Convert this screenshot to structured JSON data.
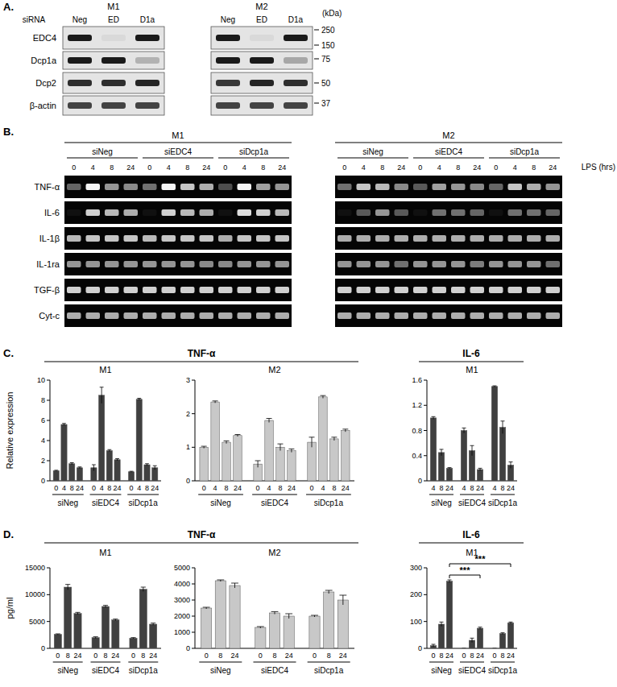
{
  "figure_a": {
    "label": "A.",
    "row_header": "siRNA",
    "unit": "(kDa)",
    "lanes": [
      "Neg",
      "ED",
      "D1a"
    ],
    "proteins": [
      "EDC4",
      "Dcp1a",
      "Dcp2",
      "β-actin"
    ],
    "markers": [
      250,
      150,
      75,
      50,
      37
    ],
    "groups": [
      {
        "name": "M1",
        "bands": [
          [
            1,
            0.05,
            1
          ],
          [
            1,
            1,
            0.25
          ],
          [
            0.9,
            0.9,
            0.95
          ],
          [
            0.8,
            0.8,
            0.8
          ]
        ]
      },
      {
        "name": "M2",
        "bands": [
          [
            1,
            0.05,
            1
          ],
          [
            1,
            1,
            0.3
          ],
          [
            0.85,
            0.95,
            0.9
          ],
          [
            0.8,
            0.8,
            0.8
          ]
        ]
      }
    ]
  },
  "figure_b": {
    "label": "B.",
    "x_label": "LPS (hrs)",
    "genes": [
      "TNF-α",
      "IL-6",
      "IL-1β",
      "IL-1ra",
      "TGF-β",
      "Cyt-c"
    ],
    "groups": [
      "siNeg",
      "siEDC4",
      "siDcp1a"
    ],
    "times": [
      "0",
      "4",
      "8",
      "24"
    ],
    "gels": [
      {
        "name": "M1",
        "bands": [
          [
            0.4,
            1,
            0.6,
            0.55,
            0.45,
            1,
            0.8,
            0.7,
            0.3,
            1,
            0.65,
            0.6
          ],
          [
            0.05,
            0.85,
            0.75,
            0.7,
            0.05,
            0.85,
            0.75,
            0.7,
            0.05,
            0.9,
            0.85,
            0.75
          ],
          [
            0.75,
            0.8,
            0.8,
            0.8,
            0.75,
            0.8,
            0.8,
            0.8,
            0.7,
            0.8,
            0.8,
            0.8
          ],
          [
            0.6,
            0.6,
            0.6,
            0.6,
            0.6,
            0.6,
            0.6,
            0.55,
            0.55,
            0.6,
            0.6,
            0.6
          ],
          [
            0.85,
            0.85,
            0.85,
            0.85,
            0.85,
            0.85,
            0.85,
            0.85,
            0.85,
            0.85,
            0.85,
            0.85
          ],
          [
            0.7,
            0.7,
            0.7,
            0.7,
            0.7,
            0.7,
            0.7,
            0.7,
            0.7,
            0.7,
            0.7,
            0.7
          ]
        ]
      },
      {
        "name": "M2",
        "bands": [
          [
            0.45,
            0.8,
            0.75,
            0.55,
            0.35,
            0.65,
            0.6,
            0.55,
            0.4,
            0.8,
            0.7,
            0.6
          ],
          [
            0.05,
            0.35,
            0.6,
            0.35,
            0.05,
            0.45,
            0.45,
            0.4,
            0.05,
            0.45,
            0.45,
            0.4
          ],
          [
            0.7,
            0.7,
            0.7,
            0.7,
            0.7,
            0.7,
            0.7,
            0.7,
            0.7,
            0.7,
            0.7,
            0.7
          ],
          [
            0.6,
            0.6,
            0.6,
            0.45,
            0.6,
            0.6,
            0.6,
            0.5,
            0.6,
            0.6,
            0.6,
            0.45
          ],
          [
            0.85,
            0.85,
            0.85,
            0.85,
            0.85,
            0.85,
            0.85,
            0.85,
            0.85,
            0.85,
            0.85,
            0.85
          ],
          [
            0.7,
            0.7,
            0.7,
            0.7,
            0.7,
            0.7,
            0.7,
            0.7,
            0.7,
            0.7,
            0.7,
            0.7
          ]
        ]
      }
    ]
  },
  "chart_data": [
    {
      "type": "bar",
      "panel": "C.",
      "title": "TNF-α",
      "subtitle": "M1",
      "y_label": "Relative expression",
      "categories": [
        "0",
        "4",
        "8",
        "24"
      ],
      "color": "#404040",
      "ylim": [
        0,
        10
      ],
      "yticks": [
        0,
        2,
        4,
        6,
        8,
        10
      ],
      "series": [
        {
          "name": "siNeg",
          "values": [
            1,
            5.6,
            1.7,
            1.3
          ],
          "errors": [
            0.05,
            0.1,
            0.1,
            0.08
          ]
        },
        {
          "name": "siEDC4",
          "values": [
            1.3,
            8.5,
            3.0,
            2.1
          ],
          "errors": [
            0.3,
            0.8,
            0.1,
            0.1
          ]
        },
        {
          "name": "siDcp1a",
          "values": [
            0.9,
            8.1,
            1.6,
            1.3
          ],
          "errors": [
            0.05,
            0.1,
            0.1,
            0.2
          ]
        }
      ]
    },
    {
      "type": "bar",
      "subtitle": "M2",
      "categories": [
        "0",
        "4",
        "8",
        "24"
      ],
      "color": "#c8c8c8",
      "ylim": [
        0,
        3
      ],
      "yticks": [
        0,
        1,
        2,
        3
      ],
      "series": [
        {
          "name": "siNeg",
          "values": [
            1.0,
            2.35,
            1.15,
            1.35
          ],
          "errors": [
            0.03,
            0.03,
            0.04,
            0.03
          ]
        },
        {
          "name": "siEDC4",
          "values": [
            0.5,
            1.8,
            1.0,
            0.9
          ],
          "errors": [
            0.1,
            0.06,
            0.1,
            0.05
          ]
        },
        {
          "name": "siDcp1a",
          "values": [
            1.15,
            2.5,
            1.25,
            1.5
          ],
          "errors": [
            0.15,
            0.04,
            0.05,
            0.04
          ]
        }
      ]
    },
    {
      "type": "bar",
      "title": "IL-6",
      "subtitle": "M1",
      "categories": [
        "4",
        "8",
        "24"
      ],
      "color": "#404040",
      "ylim": [
        0,
        1.6
      ],
      "yticks": [
        0,
        0.4,
        0.8,
        1.2,
        1.6
      ],
      "series": [
        {
          "name": "siNeg",
          "values": [
            1.0,
            0.45,
            0.2
          ],
          "errors": [
            0.02,
            0.05,
            0.01
          ]
        },
        {
          "name": "siEDC4",
          "values": [
            0.8,
            0.48,
            0.18
          ],
          "errors": [
            0.04,
            0.08,
            0.02
          ]
        },
        {
          "name": "siDcp1a",
          "values": [
            1.5,
            0.85,
            0.25
          ],
          "errors": [
            0.01,
            0.1,
            0.05
          ]
        }
      ]
    },
    {
      "type": "bar",
      "panel": "D.",
      "title": "TNF-α",
      "subtitle": "M1",
      "y_label": "pg/ml",
      "categories": [
        "0",
        "8",
        "24"
      ],
      "color": "#404040",
      "ylim": [
        0,
        15000
      ],
      "yticks": [
        0,
        5000,
        10000,
        15000
      ],
      "series": [
        {
          "name": "siNeg",
          "values": [
            2600,
            11400,
            6500
          ],
          "errors": [
            100,
            500,
            200
          ]
        },
        {
          "name": "siEDC4",
          "values": [
            2000,
            7800,
            5300
          ],
          "errors": [
            150,
            200,
            150
          ]
        },
        {
          "name": "siDcp1a",
          "values": [
            1900,
            11000,
            4500
          ],
          "errors": [
            100,
            400,
            200
          ]
        }
      ]
    },
    {
      "type": "bar",
      "subtitle": "M2",
      "categories": [
        "0",
        "8",
        "24"
      ],
      "color": "#c8c8c8",
      "ylim": [
        0,
        5000
      ],
      "yticks": [
        0,
        1000,
        2000,
        3000,
        4000,
        5000
      ],
      "series": [
        {
          "name": "siNeg",
          "values": [
            2500,
            4200,
            3900
          ],
          "errors": [
            50,
            50,
            150
          ]
        },
        {
          "name": "siEDC4",
          "values": [
            1300,
            2200,
            2000
          ],
          "errors": [
            50,
            80,
            150
          ]
        },
        {
          "name": "siDcp1a",
          "values": [
            2000,
            3500,
            3000
          ],
          "errors": [
            50,
            100,
            300
          ]
        }
      ]
    },
    {
      "type": "bar",
      "title": "IL-6",
      "subtitle": "M1",
      "categories": [
        "0",
        "8",
        "24"
      ],
      "color": "#404040",
      "ylim": [
        0,
        300
      ],
      "yticks": [
        0,
        100,
        200,
        300
      ],
      "series": [
        {
          "name": "siNeg",
          "values": [
            10,
            90,
            250
          ],
          "errors": [
            5,
            8,
            5
          ]
        },
        {
          "name": "siEDC4",
          "values": [
            0,
            30,
            75
          ],
          "errors": [
            0,
            8,
            4
          ]
        },
        {
          "name": "siDcp1a",
          "values": [
            0,
            55,
            95
          ],
          "errors": [
            0,
            3,
            3
          ]
        }
      ],
      "annotations": [
        {
          "text": "***",
          "from": "siNeg",
          "to": "siEDC4",
          "category": "24"
        },
        {
          "text": "***",
          "from": "siNeg",
          "to": "siDcp1a",
          "category": "24"
        }
      ]
    }
  ]
}
